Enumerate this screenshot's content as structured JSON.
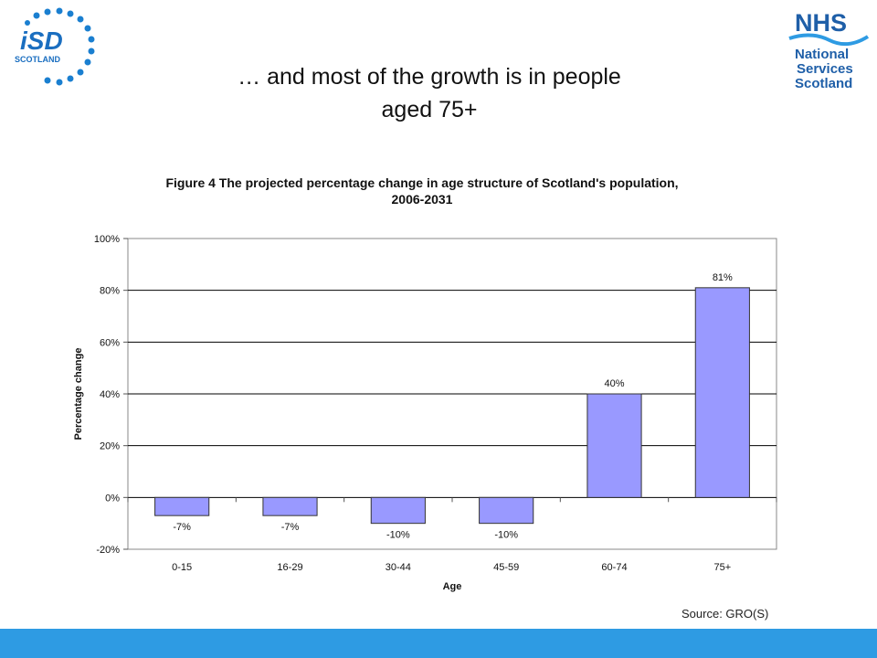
{
  "slide": {
    "title_line1": "… and most of the growth is in people",
    "title_line2": "aged 75+",
    "source": "Source: GRO(S)",
    "footer_color": "#2e9be3"
  },
  "logos": {
    "isd_text": "iSD",
    "isd_sub": "SCOTLAND",
    "nhs_text": "NHS",
    "nhs_line1": "National",
    "nhs_line2": "Services",
    "nhs_line3": "Scotland"
  },
  "chart_data": {
    "type": "bar",
    "title_line1": "Figure 4 The projected percentage change in age structure of Scotland's population,",
    "title_line2": "2006-2031",
    "xlabel": "Age",
    "ylabel": "Percentage change",
    "categories": [
      "0-15",
      "16-29",
      "30-44",
      "45-59",
      "60-74",
      "75+"
    ],
    "values": [
      -7,
      -7,
      -10,
      -10,
      40,
      81
    ],
    "data_labels": [
      "-7%",
      "-7%",
      "-10%",
      "-10%",
      "40%",
      "81%"
    ],
    "ylim": [
      -20,
      100
    ],
    "yticks": [
      -20,
      0,
      20,
      40,
      60,
      80,
      100
    ],
    "ytick_labels": [
      "-20%",
      "0%",
      "20%",
      "40%",
      "60%",
      "80%",
      "100%"
    ],
    "grid": true,
    "bar_color": "#9999ff",
    "legend": "none"
  }
}
